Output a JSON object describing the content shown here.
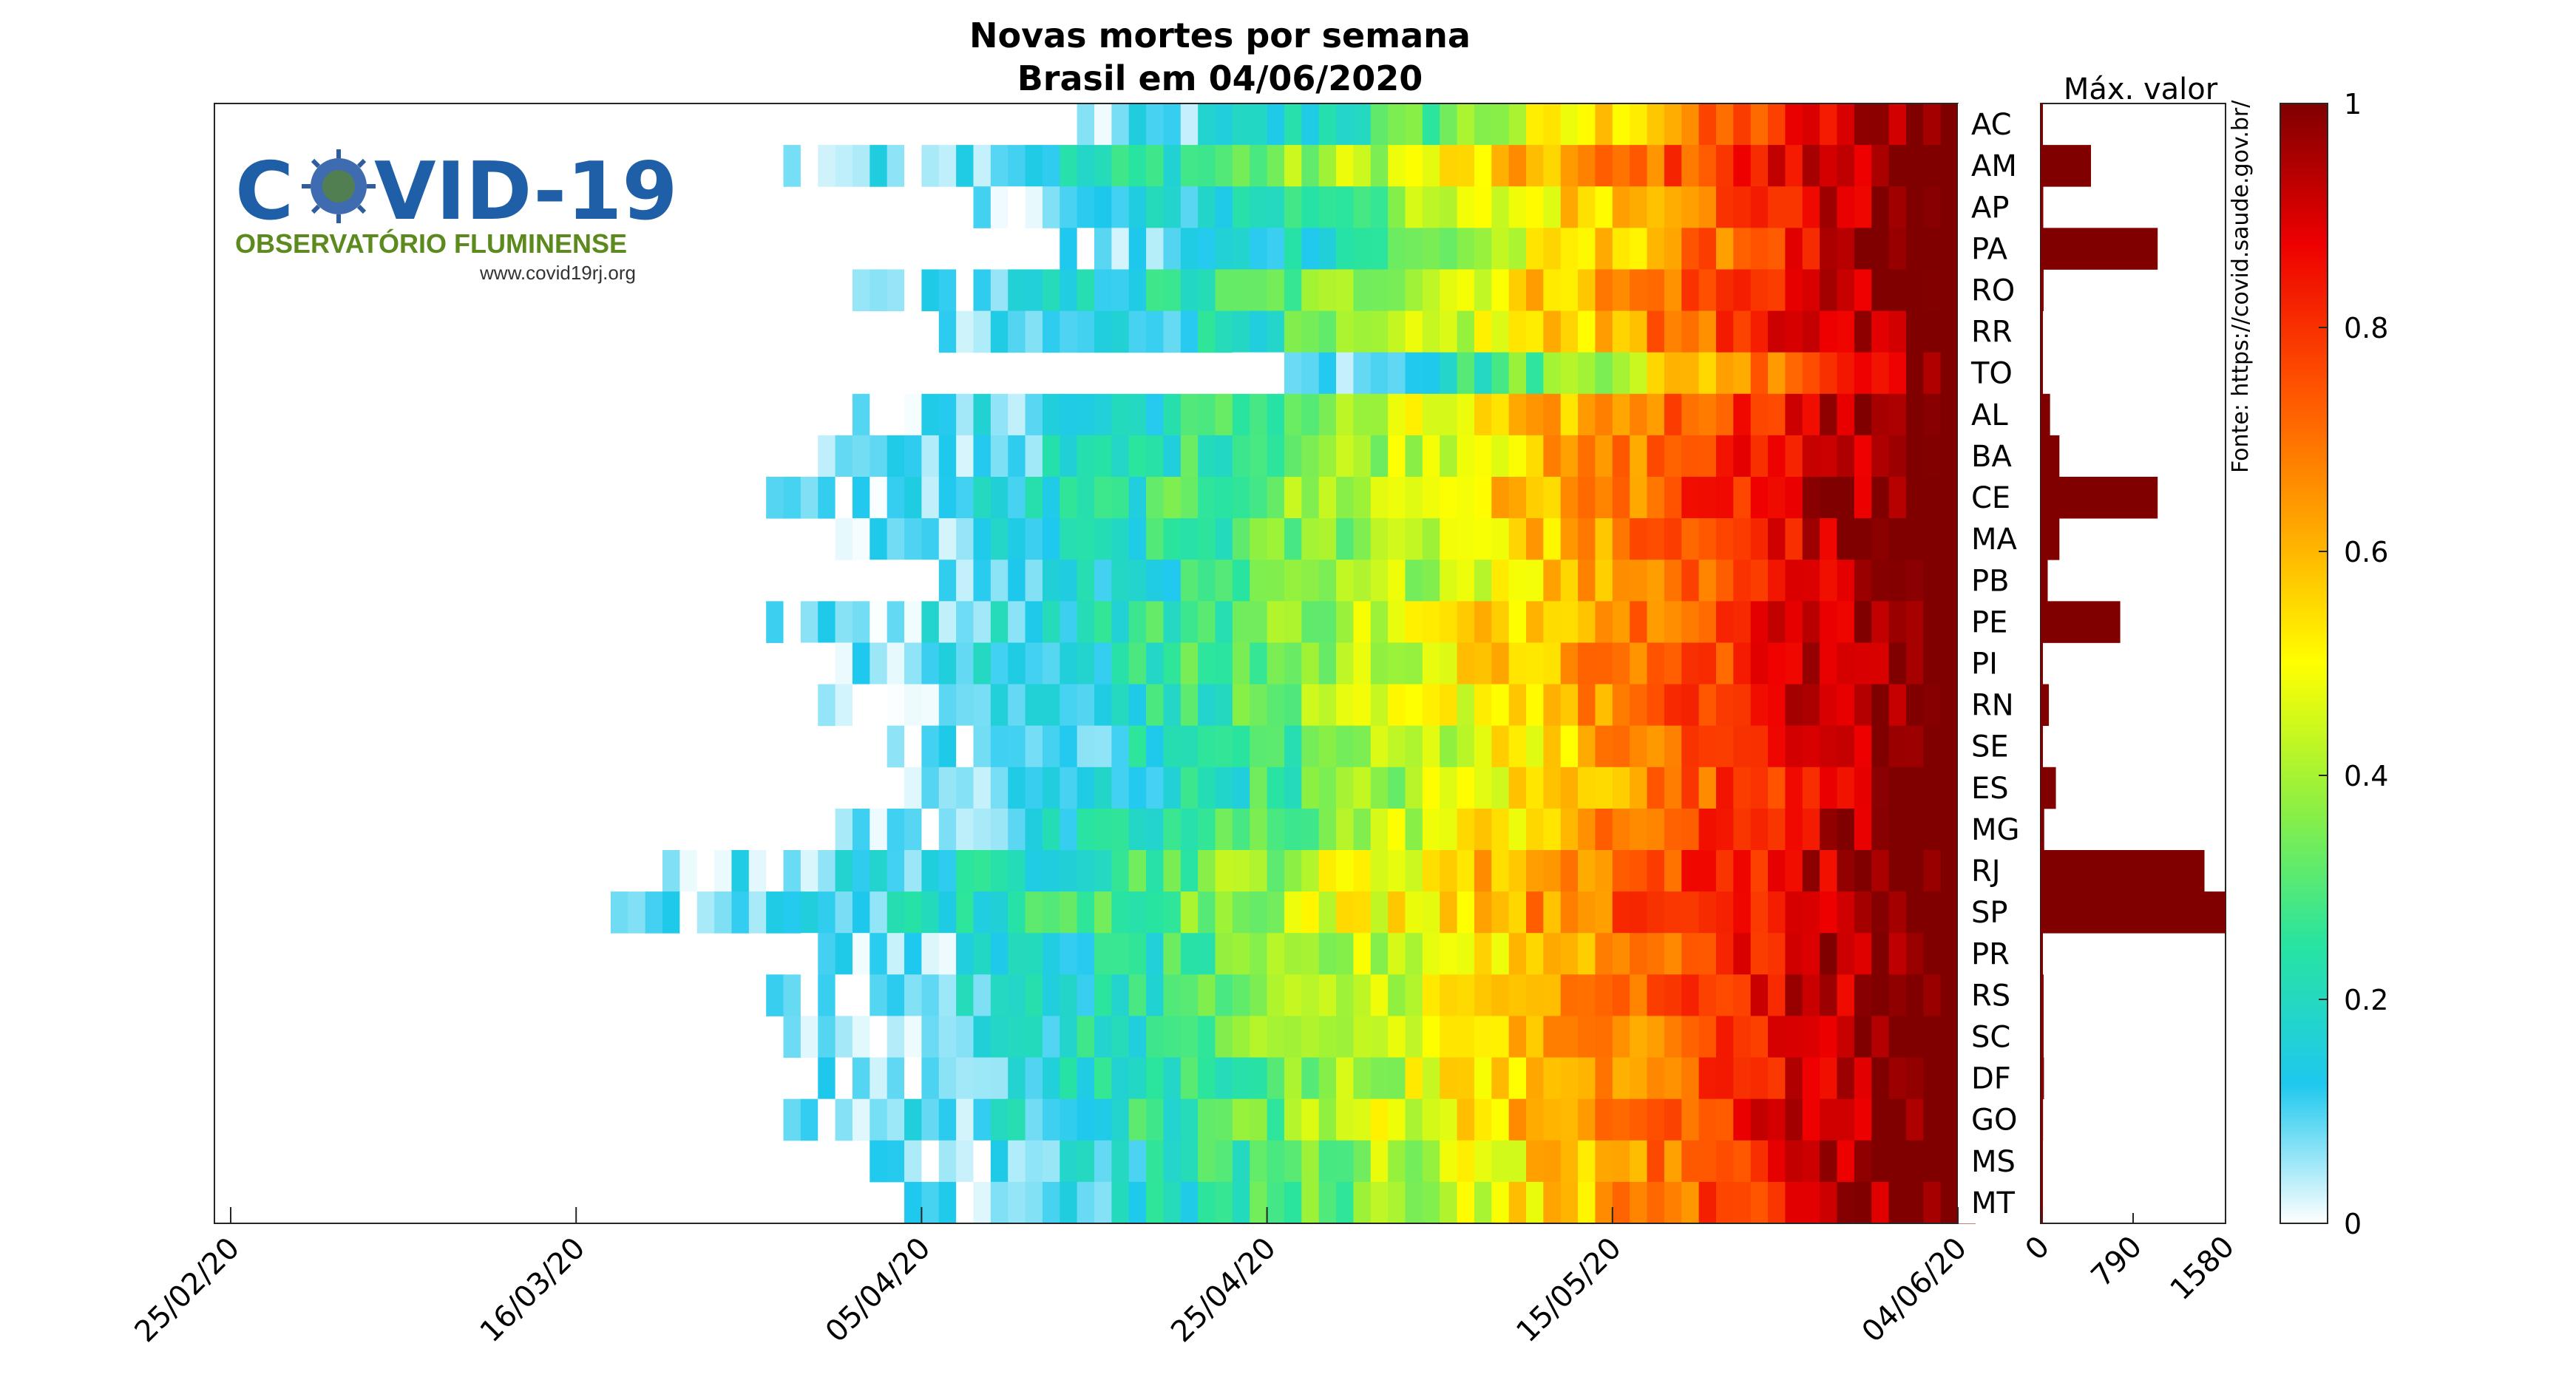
{
  "chart_data": [
    {
      "type": "heatmap",
      "title": "Novas mortes por semana",
      "subtitle": "Brasil em 04/06/2020",
      "x_tick_labels": [
        "25/02/20",
        "16/03/20",
        "05/04/20",
        "25/04/20",
        "15/05/20",
        "04/06/20"
      ],
      "x_range": [
        "25/02/20",
        "04/06/20"
      ],
      "rows": [
        "AC",
        "AM",
        "AP",
        "PA",
        "RO",
        "RR",
        "TO",
        "AL",
        "BA",
        "CE",
        "MA",
        "PB",
        "PE",
        "PI",
        "RN",
        "SE",
        "ES",
        "MG",
        "RJ",
        "SP",
        "PR",
        "RS",
        "SC",
        "DF",
        "GO",
        "MS",
        "MT"
      ],
      "series_start": {
        "AC": "14/04/20",
        "AM": "28/03/20",
        "AP": "08/04/20",
        "PA": "13/04/20",
        "RO": "01/04/20",
        "RR": "06/04/20",
        "TO": "23/04/20",
        "AL": "01/04/20",
        "BA": "30/03/20",
        "CE": "27/03/20",
        "MA": "31/03/20",
        "PB": "02/04/20",
        "PE": "27/03/20",
        "PI": "29/03/20",
        "RN": "30/03/20",
        "SE": "03/04/20",
        "ES": "04/04/20",
        "MG": "31/03/20",
        "RJ": "21/03/20",
        "SP": "18/03/20",
        "PR": "29/03/20",
        "RS": "27/03/20",
        "SC": "28/03/20",
        "DF": "30/03/20",
        "GO": "28/03/20",
        "MS": "02/04/20",
        "MT": "04/04/20"
      },
      "values_note_scale": [
        0,
        1
      ],
      "colorbar": {
        "ticks": [
          0,
          0.2,
          0.4,
          0.6,
          0.8,
          1
        ],
        "tick_labels": [
          "0",
          "0.2",
          "0.4",
          "0.6",
          "0.8",
          "1"
        ]
      }
    },
    {
      "type": "bar",
      "orientation": "horizontal",
      "title": "Máx. valor",
      "categories": [
        "AC",
        "AM",
        "AP",
        "PA",
        "RO",
        "RR",
        "TO",
        "AL",
        "BA",
        "CE",
        "MA",
        "PB",
        "PE",
        "PI",
        "RN",
        "SE",
        "ES",
        "MG",
        "RJ",
        "SP",
        "PR",
        "RS",
        "SC",
        "DF",
        "GO",
        "MS",
        "MT"
      ],
      "values": [
        15,
        430,
        22,
        1000,
        25,
        18,
        10,
        80,
        160,
        1000,
        160,
        60,
        680,
        14,
        70,
        15,
        130,
        30,
        1400,
        1580,
        18,
        25,
        25,
        28,
        20,
        12,
        18
      ],
      "xlim": [
        0,
        1580
      ],
      "x_tick_labels": [
        "0",
        "790",
        "1580"
      ]
    }
  ],
  "colors": {
    "bar": "#800000",
    "logo_blue": "#1f5fa8",
    "logo_green": "#5c8a1e"
  },
  "logo": {
    "word": "COVID-19",
    "word_left": "C",
    "word_right": "VID-19",
    "subtitle": "OBSERVATÓRIO FLUMINENSE",
    "url": "www.covid19rj.org",
    "virus_icon": "coronavirus-icon"
  },
  "source": "Fonte: https://covid.saude.gov.br/"
}
